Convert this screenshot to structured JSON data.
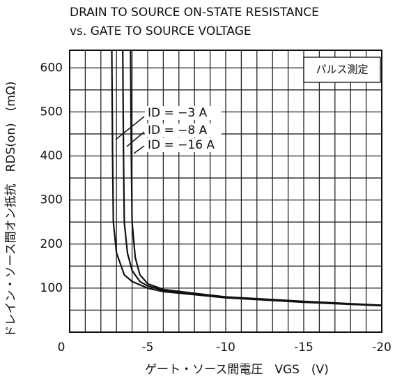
{
  "chart_data": {
    "type": "line",
    "title": [
      "DRAIN TO SOURCE ON-STATE RESISTANCE",
      "vs. GATE TO SOURCE VOLTAGE"
    ],
    "x_label": "ゲート・ソース間電圧　VGS　(V)",
    "y_label": "ドレイン・ソース間オン抵抗　RDS(on)　(mΩ)",
    "annotation": "パルス測定",
    "xlim": [
      0,
      -20
    ],
    "ylim": [
      0,
      640
    ],
    "xticks": [
      0,
      -5,
      -10,
      -15,
      -20
    ],
    "yticks": [
      100,
      200,
      300,
      400,
      500,
      600
    ],
    "xminorticks": [
      -1,
      -2,
      -3,
      -4,
      -6,
      -7,
      -8,
      -9,
      -11,
      -12,
      -13,
      -14,
      -16,
      -17,
      -18,
      -19
    ],
    "yminorticks": [
      50,
      150,
      250,
      350,
      450,
      550
    ],
    "grid": true,
    "series": [
      {
        "name": "ID = −3 A",
        "color": "#111111",
        "x": [
          -2.7,
          -2.75,
          -2.8,
          -3,
          -3.5,
          -4,
          -5,
          -6,
          -8,
          -10,
          -15,
          -20
        ],
        "values": [
          640,
          400,
          250,
          180,
          130,
          115,
          100,
          92,
          85,
          78,
          68,
          60
        ]
      },
      {
        "name": "ID = −8 A",
        "color": "#111111",
        "x": [
          -3.4,
          -3.45,
          -3.5,
          -3.7,
          -4,
          -4.5,
          -5,
          -6,
          -8,
          -10,
          -15,
          -20
        ],
        "values": [
          640,
          400,
          250,
          180,
          140,
          115,
          105,
          95,
          86,
          79,
          69,
          61
        ]
      },
      {
        "name": "ID = −16 A",
        "color": "#111111",
        "x": [
          -3.9,
          -3.95,
          -4,
          -4.2,
          -4.5,
          -5,
          -6,
          -8,
          -10,
          -15,
          -20
        ],
        "values": [
          640,
          400,
          250,
          170,
          130,
          110,
          97,
          88,
          80,
          70,
          61
        ]
      }
    ]
  }
}
